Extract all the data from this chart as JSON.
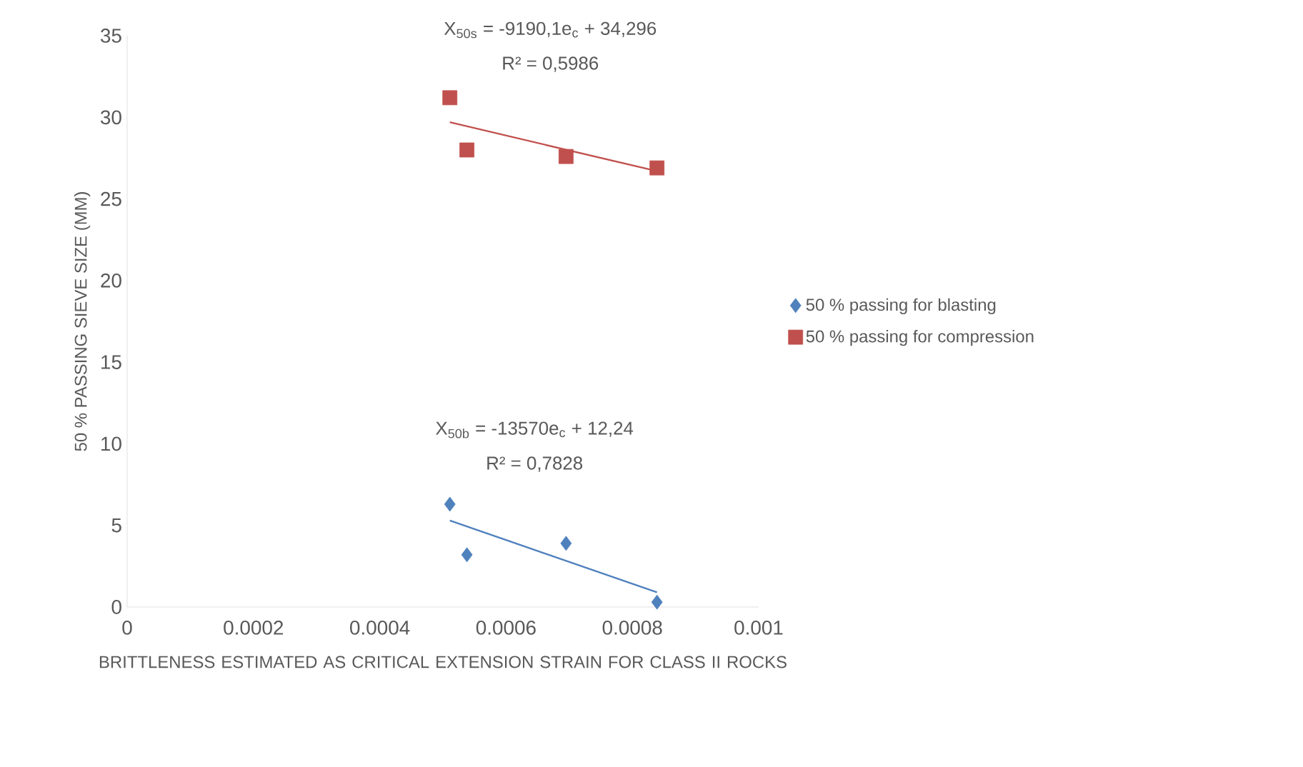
{
  "chart_data": {
    "type": "scatter",
    "xlabel": "BRITTLENESS ESTIMATED AS CRITICAL EXTENSION STRAIN FOR CLASS II ROCKS",
    "ylabel": "50 % PASSING SIEVE SIZE (MM)",
    "xlim": [
      0,
      0.001
    ],
    "xticks": [
      0,
      0.0002,
      0.0004,
      0.0006,
      0.0008,
      0.001
    ],
    "ylim": [
      0,
      35
    ],
    "yticks": [
      0,
      5,
      10,
      15,
      20,
      25,
      30,
      35
    ],
    "grid": false,
    "legend": "right",
    "series": [
      {
        "name": "50 % passing for blasting",
        "color": "#4f81bd",
        "marker": "diamond",
        "x": [
          0.000511,
          0.000538,
          0.000695,
          0.000839
        ],
        "values": [
          6.3,
          3.2,
          3.9,
          0.3
        ]
      },
      {
        "name": "50 % passing for compression",
        "color": "#c0504d",
        "marker": "square",
        "x": [
          0.000511,
          0.000538,
          0.000695,
          0.000839
        ],
        "values": [
          31.2,
          28.0,
          27.6,
          26.9
        ]
      },
      {
        "type": "line",
        "color": "#4f81bd",
        "marker": "none",
        "x": [
          0.000511,
          0.000839
        ],
        "values": [
          5.3,
          0.9
        ]
      },
      {
        "type": "line",
        "color": "#c0504d",
        "marker": "none",
        "x": [
          0.000511,
          0.000839
        ],
        "values": [
          29.7,
          26.7
        ]
      }
    ],
    "annotations": [
      "X$_{50s}$ = -9190,1e$_{c}$ + 34,296",
      "R² = 0,5986",
      "X$_{50b}$ = -13570e$_{c}$ + 12,24",
      "R² = 0,7828"
    ]
  }
}
